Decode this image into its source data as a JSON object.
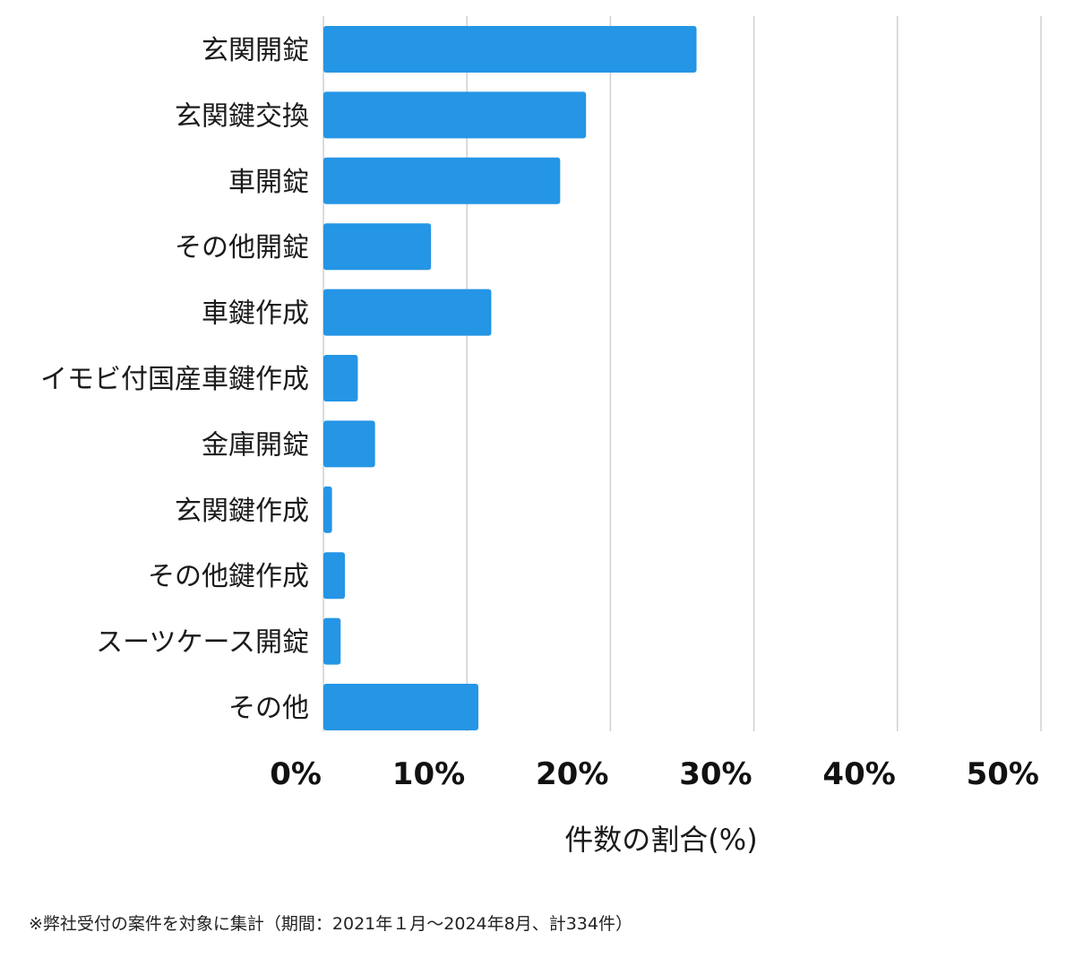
{
  "chart_data": {
    "type": "bar",
    "orientation": "horizontal",
    "categories": [
      "玄関開錠",
      "玄関鍵交換",
      "車開錠",
      "その他開錠",
      "車鍵作成",
      "イモビ付国産車鍵作成",
      "金庫開錠",
      "玄関鍵作成",
      "その他鍵作成",
      "スーツケース開錠",
      "その他"
    ],
    "values": [
      26.0,
      18.3,
      16.5,
      7.5,
      11.7,
      2.4,
      3.6,
      0.6,
      1.5,
      1.2,
      10.8
    ],
    "xlabel": "件数の割合(%)",
    "ylabel": "",
    "xlim": [
      0,
      50
    ],
    "ticks": [
      0,
      10,
      20,
      30,
      40,
      50
    ],
    "tick_labels": [
      "0%",
      "10%",
      "20%",
      "30%",
      "40%",
      "50%"
    ],
    "grid": true,
    "bar_color": "#2595e5",
    "title": ""
  },
  "footnote": "※弊社受付の案件を対象に集計（期間：2021年１月〜2024年8月、計334件）"
}
